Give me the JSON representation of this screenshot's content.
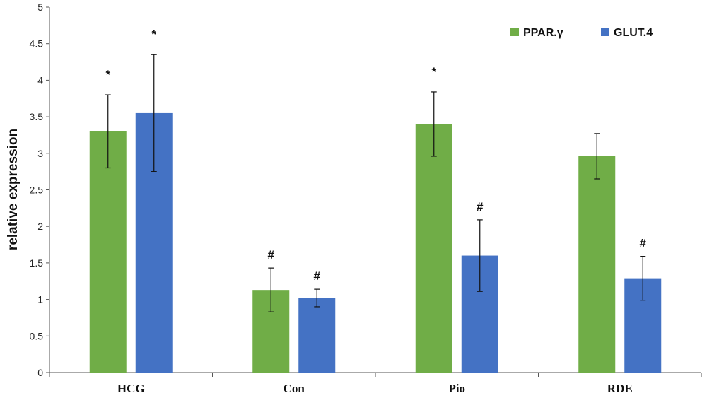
{
  "chart_data": {
    "type": "bar",
    "title": "",
    "xlabel": "",
    "ylabel": "relative expression",
    "ylim": [
      0,
      5
    ],
    "yticks": [
      0,
      0.5,
      1,
      1.5,
      2,
      2.5,
      3,
      3.5,
      4,
      4.5,
      5
    ],
    "ytick_labels": [
      "0",
      "0.5",
      "1",
      "1.5",
      "2",
      "2.5",
      "3",
      "3.5",
      "4",
      "4.5",
      "5"
    ],
    "grid": false,
    "legend": "top-right",
    "categories": [
      "HCG",
      "Con",
      "Pio",
      "RDE"
    ],
    "series": [
      {
        "name": "PPAR.γ",
        "color": "#70ad47",
        "values": [
          3.3,
          1.13,
          3.4,
          2.96
        ],
        "errors": [
          0.5,
          0.3,
          0.44,
          0.31
        ],
        "annotations": [
          "*",
          "#",
          "*",
          ""
        ]
      },
      {
        "name": "GLUT.4",
        "color": "#4472c4",
        "values": [
          3.55,
          1.02,
          1.6,
          1.29
        ],
        "errors": [
          0.8,
          0.12,
          0.49,
          0.3
        ],
        "annotations": [
          "*",
          "#",
          "#",
          "#"
        ]
      }
    ]
  }
}
